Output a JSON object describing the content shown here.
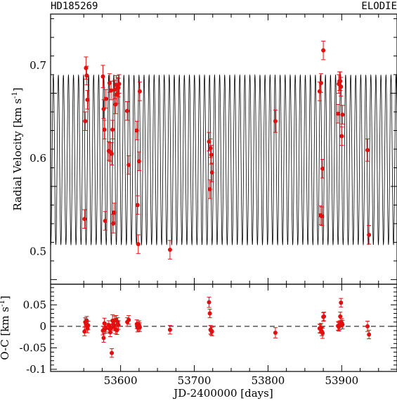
{
  "chart_data": [
    {
      "type": "scatter",
      "star_label": "HD185269",
      "instrument_label": "ELODIE",
      "ylabel": "Radial Velocity [km s",
      "ylabel_sup": "-1",
      "ylabel_end": "]",
      "xlim": [
        53505,
        53975
      ],
      "ylim": [
        0.465,
        0.755
      ],
      "yticks": [
        "0.5",
        "0.6",
        "0.7"
      ],
      "model": {
        "period_days": 6.838,
        "center": 0.5985,
        "amplitude": 0.091,
        "phase_jd": 53507.0
      },
      "x": [
        53551,
        53552,
        53553,
        53554,
        53555,
        53576,
        53577,
        53578,
        53579,
        53580,
        53584,
        53585,
        53586,
        53587,
        53588,
        53589,
        53590,
        53591,
        53592,
        53593,
        53594,
        53595,
        53596,
        53597,
        53598,
        53609,
        53611,
        53622,
        53623,
        53624,
        53625,
        53626,
        53667,
        53720,
        53721,
        53722,
        53723,
        53724,
        53810,
        53870,
        53871,
        53872,
        53873,
        53874,
        53875,
        53895,
        53896,
        53897,
        53898,
        53899,
        53900,
        53901,
        53935,
        53937
      ],
      "y": [
        0.535,
        0.64,
        0.697,
        0.689,
        0.663,
        0.688,
        0.653,
        0.631,
        0.533,
        0.664,
        0.608,
        0.681,
        0.607,
        0.673,
        0.605,
        0.631,
        0.53,
        0.542,
        0.674,
        0.658,
        0.679,
        0.669,
        0.677,
        0.676,
        0.68,
        0.651,
        0.593,
        0.63,
        0.55,
        0.508,
        0.597,
        0.672,
        0.502,
        0.618,
        0.567,
        0.611,
        0.604,
        0.585,
        0.64,
        0.672,
        0.539,
        0.681,
        0.538,
        0.589,
        0.716,
        0.648,
        0.68,
        0.683,
        0.683,
        0.677,
        0.624,
        0.647,
        0.609,
        0.518
      ],
      "yerr": [
        0.01,
        0.01,
        0.012,
        0.01,
        0.01,
        0.012,
        0.01,
        0.01,
        0.01,
        0.01,
        0.01,
        0.01,
        0.01,
        0.01,
        0.012,
        0.01,
        0.01,
        0.01,
        0.01,
        0.01,
        0.01,
        0.01,
        0.01,
        0.01,
        0.01,
        0.01,
        0.01,
        0.01,
        0.01,
        0.01,
        0.01,
        0.01,
        0.01,
        0.01,
        0.01,
        0.01,
        0.01,
        0.01,
        0.012,
        0.01,
        0.01,
        0.01,
        0.01,
        0.01,
        0.01,
        0.01,
        0.01,
        0.01,
        0.01,
        0.01,
        0.01,
        0.01,
        0.012,
        0.01
      ]
    },
    {
      "type": "scatter",
      "ylabel": "O-C [km s",
      "ylabel_sup": "-1",
      "ylabel_end": "]",
      "xlabel": "JD-2400000 [days]",
      "xlim": [
        53505,
        53975
      ],
      "ylim": [
        -0.105,
        0.098
      ],
      "xticks": [
        "53600",
        "53700",
        "53800",
        "53900"
      ],
      "yticks": [
        "-0.1",
        "-0.05",
        "0",
        "0.05"
      ],
      "zero_line": "dashed",
      "x": [
        53551,
        53552,
        53553,
        53554,
        53555,
        53556,
        53576,
        53577,
        53578,
        53579,
        53580,
        53584,
        53585,
        53586,
        53587,
        53588,
        53589,
        53590,
        53591,
        53592,
        53593,
        53594,
        53595,
        53596,
        53597,
        53609,
        53611,
        53622,
        53623,
        53624,
        53625,
        53626,
        53667,
        53720,
        53721,
        53722,
        53723,
        53724,
        53810,
        53870,
        53871,
        53872,
        53873,
        53874,
        53875,
        53876,
        53895,
        53896,
        53897,
        53898,
        53899,
        53900,
        53901,
        53935,
        53937
      ],
      "y": [
        -0.012,
        0.01,
        0.005,
        0.013,
        -0.005,
        0.002,
        -0.01,
        -0.027,
        0.007,
        -0.006,
        -0.003,
        0.003,
        -0.006,
        -0.014,
        -0.005,
        -0.062,
        0.013,
        0.005,
        0.0,
        0.014,
        -0.007,
        0.015,
        -0.009,
        0.01,
        0.003,
        0.01,
        0.015,
        0.005,
        -0.003,
        0.0,
        0.003,
        -0.002,
        -0.008,
        0.056,
        0.03,
        -0.008,
        -0.01,
        -0.012,
        -0.015,
        -0.005,
        -0.006,
        -0.003,
        -0.012,
        -0.016,
        0.022,
        0.023,
        0.001,
        -0.001,
        0.002,
        0.023,
        0.055,
        0.008,
        0.004,
        0.0,
        -0.019
      ],
      "yerr": [
        0.01,
        0.01,
        0.012,
        0.01,
        0.01,
        0.01,
        0.01,
        0.01,
        0.012,
        0.01,
        0.01,
        0.01,
        0.01,
        0.01,
        0.01,
        0.01,
        0.014,
        0.01,
        0.01,
        0.01,
        0.01,
        0.01,
        0.01,
        0.01,
        0.01,
        0.01,
        0.01,
        0.01,
        0.01,
        0.01,
        0.01,
        0.01,
        0.01,
        0.012,
        0.01,
        0.01,
        0.01,
        0.01,
        0.012,
        0.01,
        0.01,
        0.01,
        0.01,
        0.012,
        0.01,
        0.01,
        0.01,
        0.01,
        0.01,
        0.01,
        0.01,
        0.01,
        0.01,
        0.012,
        0.01
      ]
    }
  ]
}
